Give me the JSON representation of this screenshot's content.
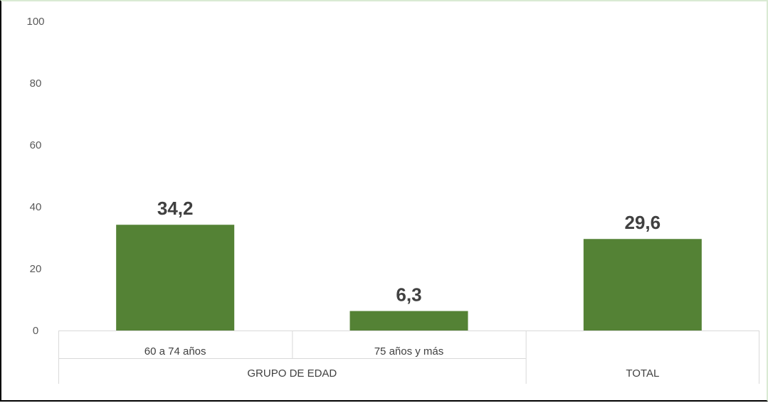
{
  "chart_data": {
    "type": "bar",
    "categories": [
      "60 a 74 años",
      "75 años y más",
      "TOTAL"
    ],
    "groups": [
      {
        "label": "GRUPO DE EDAD",
        "categories": [
          "60 a 74 años",
          "75 años y más"
        ]
      },
      {
        "label": "TOTAL",
        "categories": [
          "TOTAL"
        ]
      }
    ],
    "values": [
      34.2,
      6.3,
      29.6
    ],
    "data_labels": [
      "34,2",
      "6,3",
      "29,6"
    ],
    "category_tick_labels": [
      "60 a 74 años",
      "75 años y más",
      ""
    ],
    "ylim": [
      0,
      100
    ],
    "yticks": [
      "0",
      "20",
      "40",
      "60",
      "80",
      "100"
    ],
    "bar_color": "#548235",
    "grid": false,
    "legend": "none"
  }
}
